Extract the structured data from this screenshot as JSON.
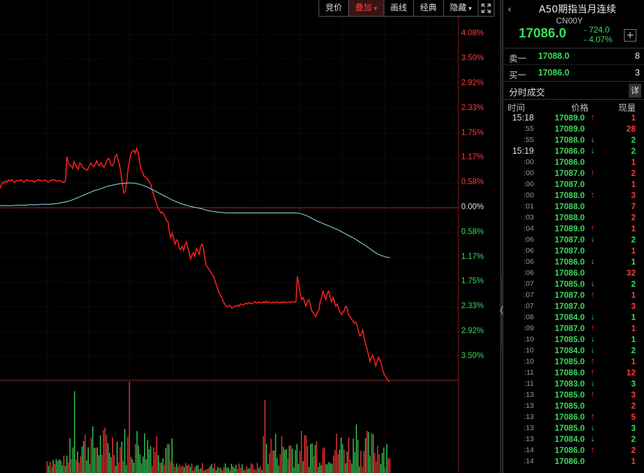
{
  "toolbar": {
    "buttons": [
      {
        "label": "竞价",
        "active": false
      },
      {
        "label": "叠加",
        "active": true,
        "dropdown": true
      },
      {
        "label": "画线",
        "active": false
      },
      {
        "label": "经典",
        "active": false
      },
      {
        "label": "隐藏",
        "active": false,
        "dropdown": true
      }
    ],
    "fullscreen_icon": "fullscreen-icon"
  },
  "chart_data": {
    "type": "line",
    "series": [
      {
        "role": "price",
        "color": "#ff2222",
        "y_pct": [
          0.45,
          0.55,
          0.6,
          0.58,
          0.63,
          0.6,
          0.65,
          0.62,
          0.66,
          0.63,
          0.6,
          0.62,
          0.64,
          0.62,
          0.66,
          0.64,
          0.62,
          0.6,
          0.64,
          0.66,
          0.63,
          0.62,
          0.64,
          0.63,
          0.6,
          0.62,
          0.64,
          0.66,
          0.64,
          0.62,
          0.63,
          0.65,
          0.64,
          0.62,
          0.6,
          0.63,
          0.64,
          0.66,
          0.65,
          0.64,
          0.62,
          0.63,
          0.64,
          0.62,
          0.6,
          0.59,
          0.63,
          1.2,
          1.05,
          1.0,
          0.98,
          0.92,
          1.08,
          1.0,
          0.95,
          0.9,
          1.05,
          1.02,
          0.95,
          0.92,
          0.9,
          0.88,
          0.92,
          1.0,
          1.05,
          0.98,
          0.96,
          1.02,
          1.1,
          1.0,
          0.98,
          1.05,
          1.0,
          0.95,
          1.0,
          1.1,
          1.15,
          1.12,
          1.0,
          0.98,
          1.05,
          1.2,
          1.25,
          1.12,
          1.0,
          0.8,
          0.55,
          0.35,
          0.38,
          0.6,
          0.9,
          1.1,
          1.25,
          1.32,
          1.35,
          1.28,
          1.38,
          1.3,
          1.1,
          0.9,
          0.85,
          0.75,
          0.72,
          0.7,
          0.65,
          0.6,
          0.55,
          0.4,
          0.3,
          0.2,
          0.1,
          0.0,
          -0.05,
          -0.12,
          -0.1,
          -0.15,
          -0.2,
          -0.3,
          -0.32,
          -0.55,
          -0.7,
          -0.6,
          -0.72,
          -0.85,
          -0.75,
          -0.78,
          -0.95,
          -0.98,
          -0.9,
          -1.0,
          -0.88,
          -0.8,
          -0.95,
          -1.05,
          -1.2,
          -1.1,
          -1.05,
          -1.15,
          -0.95,
          -1.0,
          -1.1,
          -0.9,
          -0.85,
          -0.95,
          -1.2,
          -1.35,
          -1.4,
          -1.45,
          -1.5,
          -1.55,
          -1.6,
          -1.7,
          -1.8,
          -1.9,
          -2.0,
          -2.05,
          -2.1,
          -2.2,
          -2.25,
          -2.3,
          -2.32,
          -2.28,
          -2.3,
          -2.35,
          -2.32,
          -2.3,
          -2.3,
          -2.28,
          -2.3,
          -2.25,
          -2.27,
          -2.28,
          -2.25,
          -2.23,
          -2.25,
          -2.22,
          -2.23,
          -2.25,
          -2.22,
          -2.2,
          -2.22,
          -2.23,
          -2.2,
          -2.22,
          -2.23,
          -2.2,
          -2.22,
          -2.18,
          -2.22,
          -2.2,
          -2.22,
          -2.23,
          -2.2,
          -2.22,
          -2.21,
          -2.2,
          -2.22,
          -2.23,
          -2.2,
          -2.22,
          -2.2,
          -2.22,
          -2.21,
          -2.2,
          -2.22,
          -2.2,
          -2.21,
          -2.2,
          -2.2,
          -1.6,
          -1.8,
          -2.0,
          -2.15,
          -2.1,
          -2.2,
          -2.3,
          -2.2,
          -2.15,
          -2.25,
          -2.4,
          -2.45,
          -2.5,
          -2.55,
          -2.45,
          -2.4,
          -2.2,
          -2.1,
          -1.95,
          -2.05,
          -2.15,
          -2.0,
          -1.95,
          -2.1,
          -2.2,
          -2.1,
          -2.2,
          -2.3,
          -2.25,
          -2.35,
          -2.45,
          -2.5,
          -2.45,
          -2.4,
          -2.3,
          -2.35,
          -2.5,
          -2.55,
          -2.6,
          -2.65,
          -2.7,
          -2.68,
          -2.75,
          -2.9,
          -3.0,
          -2.95,
          -2.85,
          -3.05,
          -3.2,
          -3.3,
          -3.45,
          -3.6,
          -3.5,
          -3.45,
          -3.55,
          -3.7,
          -3.6,
          -3.5,
          -3.55,
          -3.65,
          -3.8,
          -3.9,
          -3.95,
          -4.0,
          -4.05,
          -4.07
        ]
      },
      {
        "role": "average",
        "color": "#7fd4e0",
        "y_pct": [
          0.05,
          0.05,
          0.05,
          0.05,
          0.06,
          0.06,
          0.06,
          0.07,
          0.07,
          0.07,
          0.08,
          0.08,
          0.08,
          0.09,
          0.1,
          0.12,
          0.14,
          0.16,
          0.2,
          0.24,
          0.28,
          0.32,
          0.36,
          0.4,
          0.43,
          0.46,
          0.5,
          0.52,
          0.54,
          0.56,
          0.57,
          0.58,
          0.58,
          0.57,
          0.55,
          0.52,
          0.48,
          0.43,
          0.38,
          0.33,
          0.28,
          0.23,
          0.18,
          0.14,
          0.1,
          0.07,
          0.04,
          0.02,
          0.0,
          -0.02,
          -0.05,
          -0.07,
          -0.09,
          -0.1,
          -0.11,
          -0.12,
          -0.12,
          -0.12,
          -0.12,
          -0.12,
          -0.12,
          -0.12,
          -0.12,
          -0.12,
          -0.12,
          -0.12,
          -0.12,
          -0.12,
          -0.12,
          -0.12,
          -0.12,
          -0.12,
          -0.12,
          -0.13,
          -0.16,
          -0.2,
          -0.25,
          -0.3,
          -0.34,
          -0.38,
          -0.42,
          -0.46,
          -0.5,
          -0.55,
          -0.6,
          -0.65,
          -0.7,
          -0.76,
          -0.82,
          -0.88,
          -0.95,
          -1.02,
          -1.08,
          -1.12,
          -1.15,
          -1.17
        ]
      }
    ],
    "y_labels_up": [
      "4.08%",
      "3.50%",
      "2.92%",
      "2.33%",
      "1.75%",
      "1.17%",
      "0.58%"
    ],
    "y_zero": "0.00%",
    "y_labels_down": [
      "0.58%",
      "1.17%",
      "1.75%",
      "2.33%",
      "2.92%",
      "3.50%"
    ],
    "ylim": [
      -4.08,
      4.08
    ],
    "grid": true
  },
  "quote": {
    "title": "A50期指当月连续",
    "code": "CN00Y",
    "price": "17086.0",
    "change": "- 724.0",
    "change_pct": "- 4.07%",
    "add_label": "+"
  },
  "orderbook": [
    {
      "label": "卖一",
      "price": "17088.0",
      "vol": "8"
    },
    {
      "label": "买一",
      "price": "17086.0",
      "vol": "3"
    }
  ],
  "ticks": {
    "title": "分时成交",
    "detail_label": "详",
    "columns": {
      "time": "时间",
      "price": "价格",
      "vol": "现量"
    },
    "rows": [
      {
        "time": "15:18",
        "price": "17089.0",
        "dir": "up",
        "vol": "1"
      },
      {
        "time": ":55",
        "price": "17089.0",
        "dir": "flat",
        "vol": "28"
      },
      {
        "time": ":55",
        "price": "17088.0",
        "dir": "down",
        "vol": "2"
      },
      {
        "time": "15:19",
        "price": "17086.0",
        "dir": "down",
        "vol": "2"
      },
      {
        "time": ":00",
        "price": "17086.0",
        "dir": "flat",
        "vol": "1"
      },
      {
        "time": ":00",
        "price": "17087.0",
        "dir": "up",
        "vol": "2"
      },
      {
        "time": ":00",
        "price": "17087.0",
        "dir": "flat",
        "vol": "1"
      },
      {
        "time": ":00",
        "price": "17088.0",
        "dir": "up",
        "vol": "3"
      },
      {
        "time": ":01",
        "price": "17088.0",
        "dir": "flat",
        "vol": "7"
      },
      {
        "time": ":03",
        "price": "17088.0",
        "dir": "flat",
        "vol": "2"
      },
      {
        "time": ":04",
        "price": "17089.0",
        "dir": "up",
        "vol": "1"
      },
      {
        "time": ":06",
        "price": "17087.0",
        "dir": "down",
        "vol": "2"
      },
      {
        "time": ":06",
        "price": "17087.0",
        "dir": "flat",
        "vol": "1"
      },
      {
        "time": ":06",
        "price": "17086.0",
        "dir": "down",
        "vol": "1"
      },
      {
        "time": ":06",
        "price": "17086.0",
        "dir": "flat",
        "vol": "32"
      },
      {
        "time": ":07",
        "price": "17085.0",
        "dir": "down",
        "vol": "2"
      },
      {
        "time": ":07",
        "price": "17087.0",
        "dir": "up",
        "vol": "1"
      },
      {
        "time": ":07",
        "price": "17087.0",
        "dir": "flat",
        "vol": "3"
      },
      {
        "time": ":08",
        "price": "17084.0",
        "dir": "down",
        "vol": "1"
      },
      {
        "time": ":09",
        "price": "17087.0",
        "dir": "up",
        "vol": "1"
      },
      {
        "time": ":10",
        "price": "17085.0",
        "dir": "down",
        "vol": "1"
      },
      {
        "time": ":10",
        "price": "17084.0",
        "dir": "down",
        "vol": "2"
      },
      {
        "time": ":10",
        "price": "17085.0",
        "dir": "up",
        "vol": "1"
      },
      {
        "time": ":11",
        "price": "17086.0",
        "dir": "up",
        "vol": "12"
      },
      {
        "time": ":11",
        "price": "17083.0",
        "dir": "down",
        "vol": "3"
      },
      {
        "time": ":13",
        "price": "17085.0",
        "dir": "up",
        "vol": "3"
      },
      {
        "time": ":13",
        "price": "17085.0",
        "dir": "flat",
        "vol": "2"
      },
      {
        "time": ":13",
        "price": "17086.0",
        "dir": "up",
        "vol": "5"
      },
      {
        "time": ":13",
        "price": "17085.0",
        "dir": "down",
        "vol": "3"
      },
      {
        "time": ":13",
        "price": "17084.0",
        "dir": "down",
        "vol": "2"
      },
      {
        "time": ":14",
        "price": "17086.0",
        "dir": "up",
        "vol": "2"
      },
      {
        "time": ":14",
        "price": "17086.0",
        "dir": "flat",
        "vol": "1"
      }
    ]
  },
  "colors": {
    "up": "#ff3b3b",
    "down": "#3adb5a",
    "grid": "#2a0a0a"
  }
}
